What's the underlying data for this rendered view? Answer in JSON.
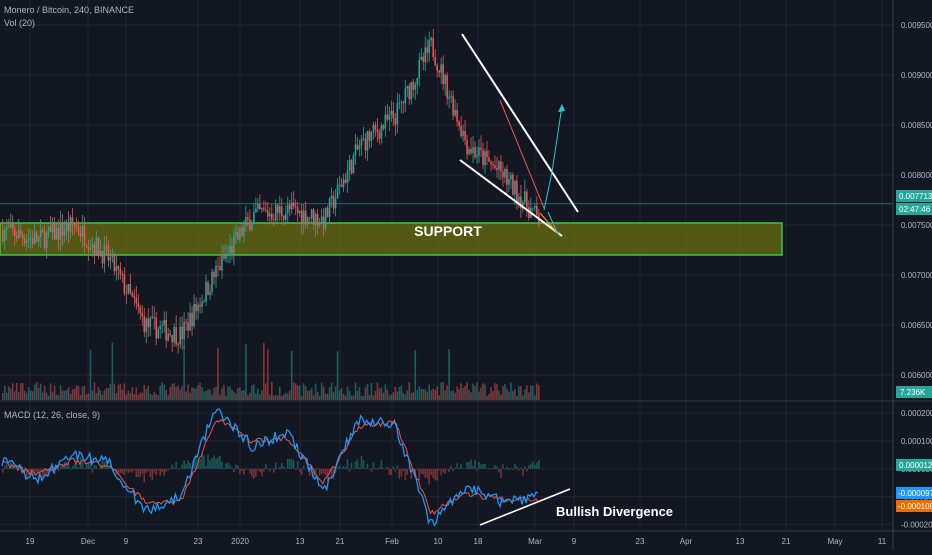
{
  "header": {
    "symbol_line": "Monero / Bitcoin, 240, BINANCE",
    "volume_line": "Vol (20)",
    "macd_line": "MACD (12, 26, close, 9)"
  },
  "colors": {
    "background": "#131722",
    "grid": "#1f2430",
    "axis_text": "#b2b5be",
    "up": "#26a69a",
    "down": "#ef5350",
    "support_fill": "#6b6f12",
    "support_border": "#2ecc40",
    "annotation": "#ffffff",
    "macd_line": "#2196f3",
    "signal_line": "#ef5350",
    "price_line": "#26a69a"
  },
  "annotations": {
    "support_label": "SUPPORT",
    "divergence_label": "Bullish Divergence"
  },
  "price_axis": {
    "ticks": [
      "0.009500",
      "0.009000",
      "0.008500",
      "0.008000",
      "0.007500",
      "0.007000",
      "0.006500",
      "0.006000"
    ],
    "current_price_tag": "0.007713",
    "countdown_tag": "02:47:46",
    "volume_tag": "7.236K"
  },
  "macd_axis": {
    "ticks": [
      "0.000200",
      "0.000100",
      "0.000000",
      "-0.000100",
      "-0.000200"
    ],
    "histogram_tag": "0.000012",
    "macd_tag": "-0.000097",
    "signal_tag": "-0.000108"
  },
  "time_axis": {
    "labels": [
      "19",
      "Dec",
      "9",
      "23",
      "2020",
      "13",
      "21",
      "Feb",
      "10",
      "18",
      "Mar",
      "9",
      "23",
      "Apr",
      "13",
      "21",
      "May",
      "11"
    ]
  },
  "chart_data": {
    "type": "candlestick",
    "symbol": "Monero / Bitcoin",
    "interval": "240",
    "exchange": "BINANCE",
    "ylim": [
      0.00575,
      0.00975
    ],
    "price_path": [
      {
        "x": "19",
        "close": 0.00745
      },
      {
        "x": "Dec",
        "close": 0.00735
      },
      {
        "x": "9",
        "close": 0.0075
      },
      {
        "x": "16",
        "close": 0.00715
      },
      {
        "x": "23",
        "close": 0.0065
      },
      {
        "x": "2020",
        "close": 0.0064
      },
      {
        "x": "6",
        "close": 0.00705
      },
      {
        "x": "13",
        "close": 0.0076
      },
      {
        "x": "21",
        "close": 0.00765
      },
      {
        "x": "28",
        "close": 0.00755
      },
      {
        "x": "Feb",
        "close": 0.0083
      },
      {
        "x": "10",
        "close": 0.0086
      },
      {
        "x": "14",
        "close": 0.0093
      },
      {
        "x": "18",
        "close": 0.0083
      },
      {
        "x": "24",
        "close": 0.008
      },
      {
        "x": "Mar",
        "close": 0.00755
      }
    ],
    "support_zone": [
      0.0072,
      0.00752
    ],
    "macd": {
      "params": "12, 26, close, 9",
      "ylim": [
        -0.00022,
        0.00024
      ],
      "macd_path": [
        3e-05,
        -4e-05,
        5e-05,
        2e-05,
        -0.00015,
        -0.0001,
        0.00022,
        8e-05,
        0.00013,
        -8e-05,
        0.00018,
        0.00016,
        -0.0002,
        -6e-05,
        -0.00012,
        -0.0001
      ],
      "signal_path": [
        2e-05,
        -2e-05,
        3e-05,
        1e-05,
        -0.00012,
        -0.00012,
        0.00018,
        0.0001,
        0.00011,
        -5e-05,
        0.00015,
        0.00017,
        -0.00016,
        -9e-05,
        -0.00011,
        -0.00011
      ],
      "histogram_last": 1.2e-05,
      "macd_last": -9.7e-05,
      "signal_last": -0.000108
    }
  }
}
